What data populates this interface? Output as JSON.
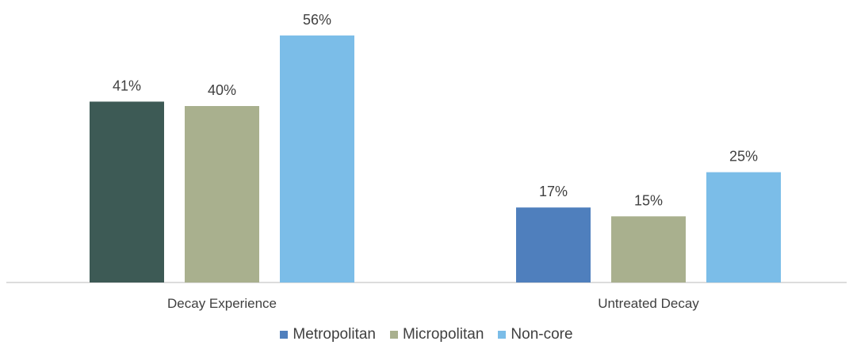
{
  "chart_data": {
    "type": "bar",
    "categories": [
      "Decay Experience",
      "Untreated Decay"
    ],
    "series": [
      {
        "name": "Metropolitan",
        "values": [
          41,
          17
        ],
        "value_labels": [
          "41%",
          "17%"
        ]
      },
      {
        "name": "Micropolitan",
        "values": [
          40,
          15
        ],
        "value_labels": [
          "40%",
          "15%"
        ]
      },
      {
        "name": "Non-core",
        "values": [
          56,
          25
        ],
        "value_labels": [
          "56%",
          "25%"
        ]
      }
    ],
    "bar_colors": [
      [
        "#3d5a55",
        "#a9b08e",
        "#7bbde8"
      ],
      [
        "#4f7fbd",
        "#a9b08e",
        "#7bbde8"
      ]
    ],
    "legend_colors": [
      "#4f7fbd",
      "#a9b08e",
      "#7bbde8"
    ],
    "ylim": [
      0,
      60
    ],
    "grid": false,
    "legend_position": "bottom"
  }
}
